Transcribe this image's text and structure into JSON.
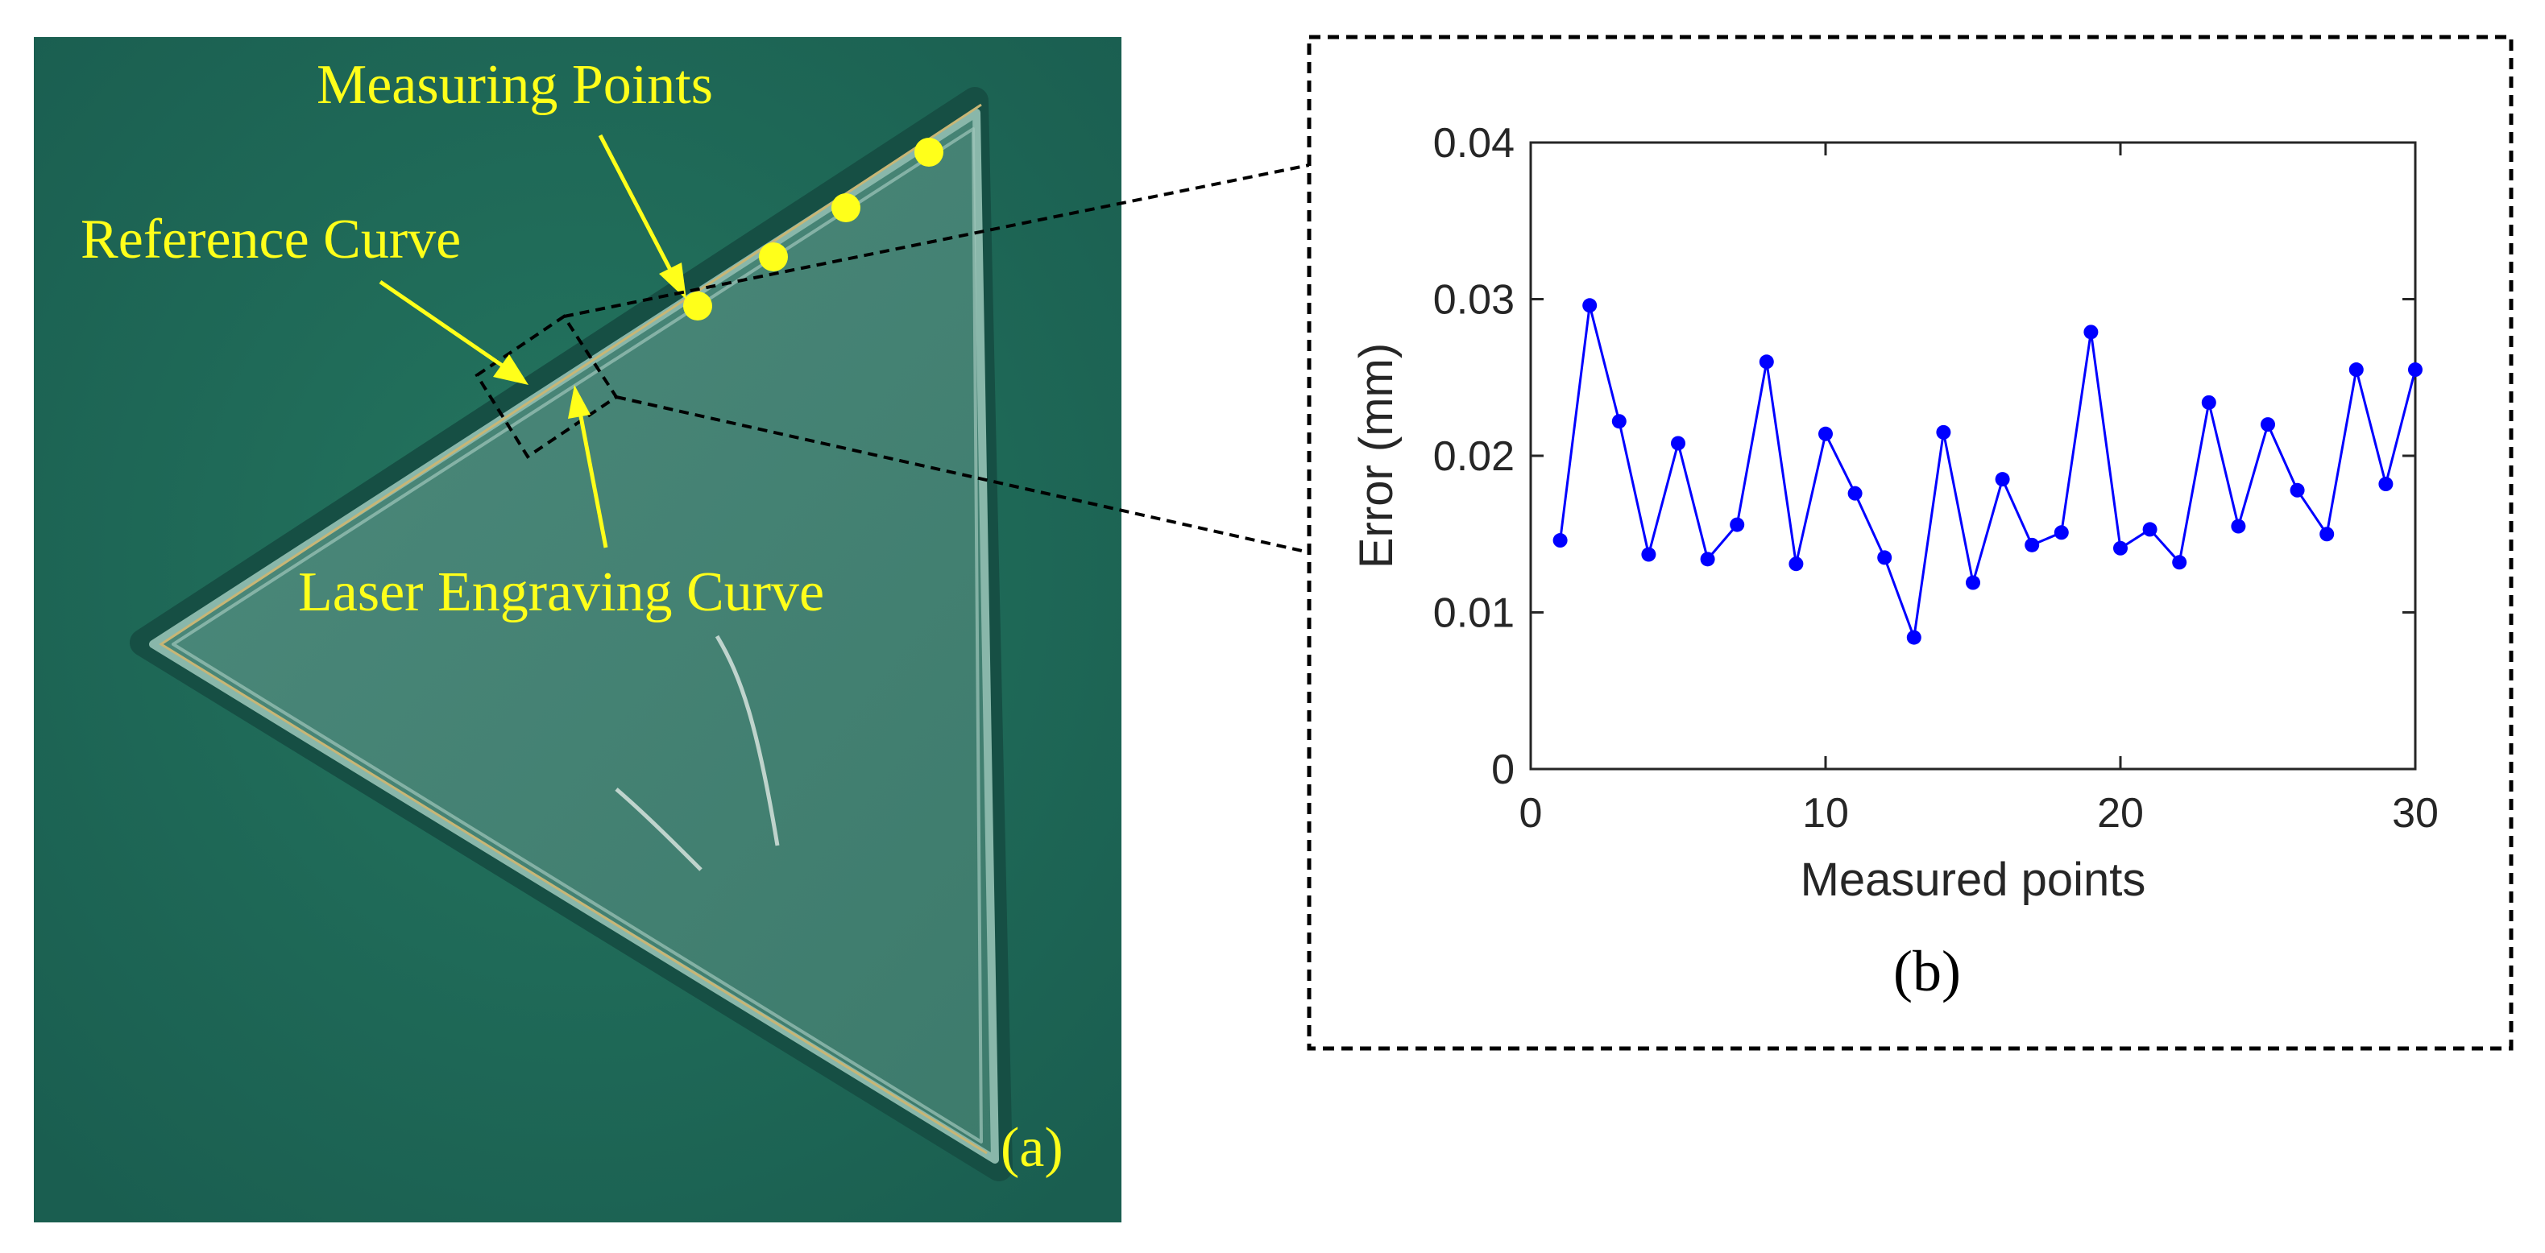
{
  "panel_a": {
    "annotations": {
      "measuring_points": "Measuring Points",
      "reference_curve": "Reference Curve",
      "laser_engraving_curve": "Laser Engraving Curve"
    },
    "panel_label": "(a)",
    "colors": {
      "board": "#1f6b5c",
      "annotation": "#ffff1a"
    }
  },
  "panel_b": {
    "panel_label": "(b)"
  },
  "chart_data": {
    "type": "line",
    "title": "",
    "xlabel": "Measured points",
    "ylabel": "Error (mm)",
    "xlim": [
      0,
      30
    ],
    "ylim": [
      0,
      0.04
    ],
    "xticks": [
      0,
      10,
      20,
      30
    ],
    "yticks": [
      0,
      0.01,
      0.02,
      0.03,
      0.04
    ],
    "xtick_labels": [
      "0",
      "10",
      "20",
      "30"
    ],
    "ytick_labels": [
      "0",
      "0.01",
      "0.02",
      "0.03",
      "0.04"
    ],
    "grid": false,
    "series": [
      {
        "name": "Error",
        "color": "#0000ff",
        "x": [
          1,
          2,
          3,
          4,
          5,
          6,
          7,
          8,
          9,
          10,
          11,
          12,
          13,
          14,
          15,
          16,
          17,
          18,
          19,
          20,
          21,
          22,
          23,
          24,
          25,
          26,
          27,
          28,
          29,
          30
        ],
        "values": [
          0.0146,
          0.0296,
          0.0222,
          0.0137,
          0.0208,
          0.0134,
          0.0156,
          0.026,
          0.0131,
          0.0214,
          0.0176,
          0.0135,
          0.0084,
          0.0215,
          0.0119,
          0.0185,
          0.0143,
          0.0151,
          0.0279,
          0.0141,
          0.0153,
          0.0132,
          0.0234,
          0.0155,
          0.022,
          0.0178,
          0.015,
          0.0255,
          0.0182,
          0.0255
        ]
      }
    ]
  }
}
